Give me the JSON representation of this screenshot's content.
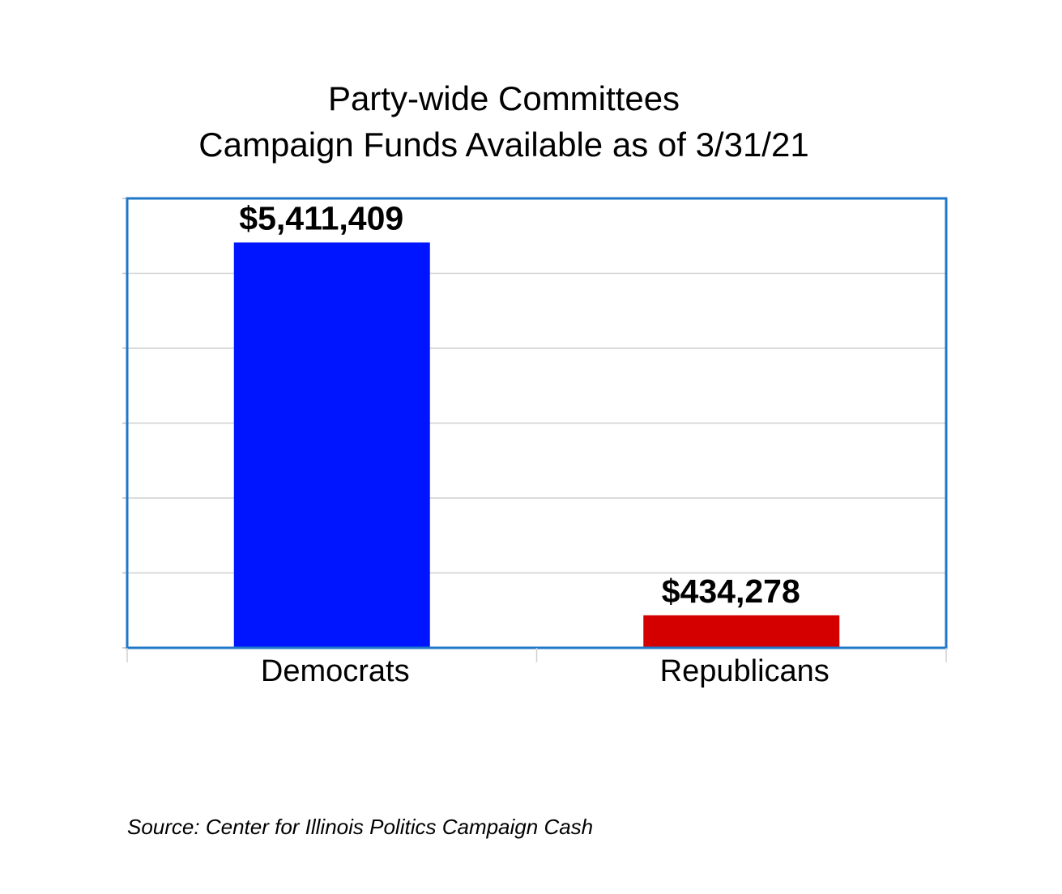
{
  "chart_data": {
    "type": "bar",
    "title_lines": [
      "Party-wide Committees",
      "Campaign Funds Available as of 3/31/21"
    ],
    "categories": [
      "Democrats",
      "Republicans"
    ],
    "values": [
      5411409,
      434278
    ],
    "data_labels": [
      "$5,411,409",
      "$434,278"
    ],
    "colors": [
      "#0015ff",
      "#d40000"
    ],
    "ylim": [
      0,
      6000000
    ],
    "grid": true,
    "y_tick_labels_visible": false,
    "legend": "none"
  },
  "source": "Source: Center for Illinois Politics Campaign Cash"
}
